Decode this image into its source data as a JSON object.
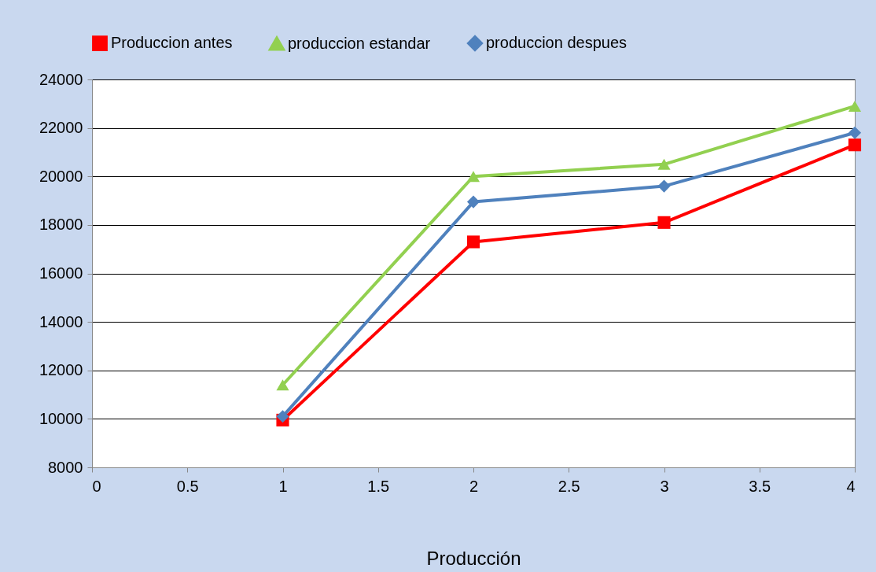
{
  "chart_data": {
    "type": "line",
    "xlabel": "Producción",
    "x": [
      1,
      2,
      3,
      4
    ],
    "series": [
      {
        "name": "Produccion antes",
        "color": "#ff0000",
        "marker": "square",
        "values": [
          9950,
          17300,
          18100,
          21300
        ]
      },
      {
        "name": "produccion estandar",
        "color": "#92d050",
        "marker": "triangle",
        "values": [
          11400,
          20000,
          20500,
          22900
        ]
      },
      {
        "name": "produccion despues",
        "color": "#4f81bd",
        "marker": "diamond",
        "values": [
          10100,
          18950,
          19600,
          21800
        ]
      }
    ],
    "xlim": [
      0,
      4
    ],
    "xticks": [
      0,
      0.5,
      1,
      1.5,
      2,
      2.5,
      3,
      3.5,
      4
    ],
    "ylim": [
      8000,
      24000
    ],
    "yticks": [
      8000,
      10000,
      12000,
      14000,
      16000,
      18000,
      20000,
      22000,
      24000
    ],
    "grid": "y",
    "legend": "top",
    "line_style": "solid"
  }
}
